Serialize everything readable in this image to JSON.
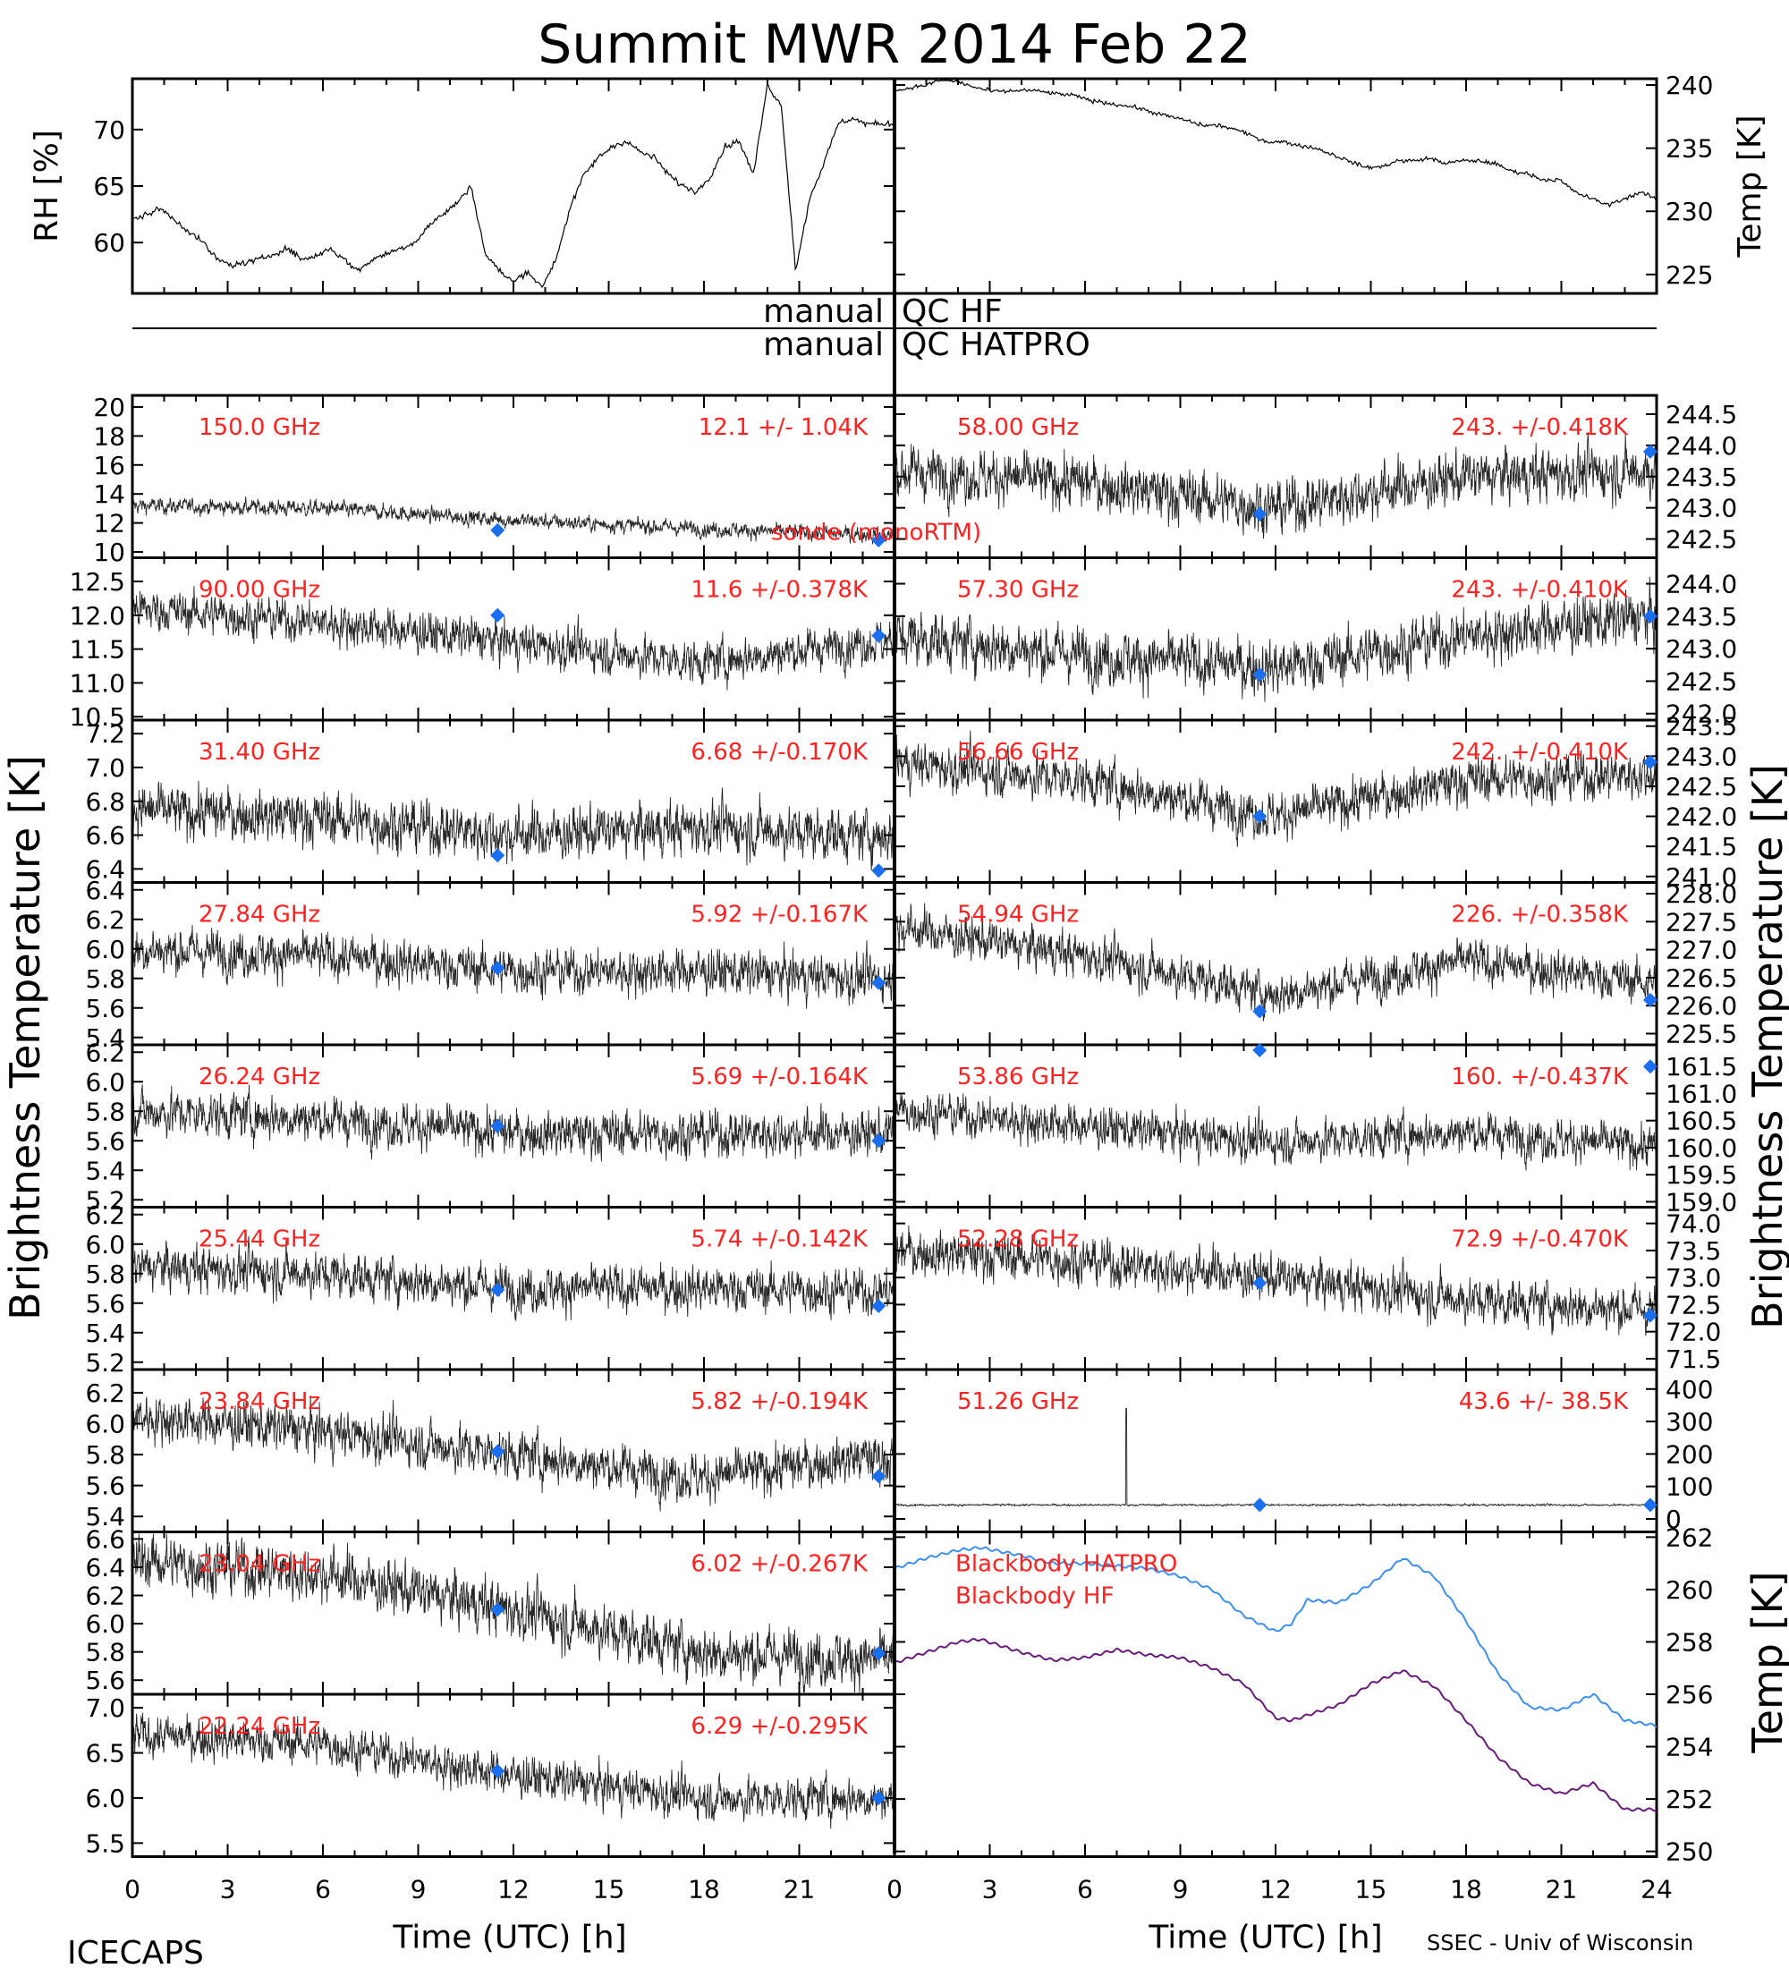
{
  "title": "Summit MWR 2014 Feb 22",
  "footer": {
    "left": "ICECAPS",
    "right": "SSEC - Univ of Wisconsin"
  },
  "colors": {
    "ink": "#000000",
    "label": "#ff2020",
    "diamond": "#1a6ff0",
    "bb_hatpro": "#3a8ff0",
    "bb_hf": "#6a1a7a"
  },
  "icons": {
    "diamond_marker": "diamond-icon"
  },
  "qc": {
    "line1_left": "manual",
    "line1_right": "QC HF",
    "line2_left": "manual",
    "line2_right": "QC HATPRO"
  },
  "met": {
    "left": {
      "ylabel": "RH [%]",
      "yticks": [
        "60",
        "65",
        "70"
      ],
      "ylim": [
        55.5,
        74.5
      ],
      "values": [
        62,
        62.5,
        63,
        62,
        61,
        60,
        58.5,
        58,
        58.2,
        58.5,
        59,
        59.5,
        58.5,
        58.8,
        59.5,
        58.5,
        57.5,
        58.5,
        59,
        59.5,
        60,
        61.5,
        62.5,
        63.5,
        65,
        59,
        57.5,
        56.5,
        57.5,
        56,
        58.5,
        63,
        66,
        67.5,
        68.5,
        69,
        68,
        67.5,
        66,
        65,
        64.5,
        66,
        68.5,
        69,
        66,
        74,
        72,
        57.5,
        64,
        67,
        70.5,
        71,
        70.5,
        70.5,
        70.5
      ]
    },
    "right": {
      "ylabel": "Temp [K]",
      "yticks": [
        "225",
        "230",
        "235",
        "240"
      ],
      "ylim": [
        223.5,
        240.5
      ],
      "values": [
        239.5,
        239.8,
        240,
        240.5,
        240.2,
        239.8,
        239.5,
        239.5,
        239.6,
        239.5,
        239.3,
        239.2,
        238.8,
        238.6,
        238.4,
        238.2,
        237.8,
        237.5,
        237.2,
        236.8,
        236.8,
        236.5,
        236,
        235.5,
        235.5,
        235.2,
        235,
        234.5,
        234,
        233.5,
        233.5,
        234,
        234,
        234.2,
        233.8,
        234,
        234,
        233.8,
        233.2,
        233,
        232.5,
        232.5,
        231.5,
        231,
        230.5,
        231,
        231.5,
        231
      ]
    }
  },
  "axes_bottom": {
    "xlabel": "Time (UTC) [h]",
    "left_xticks": [
      "0",
      "3",
      "6",
      "9",
      "12",
      "15",
      "18",
      "21"
    ],
    "right_xticks": [
      "0",
      "3",
      "6",
      "9",
      "12",
      "15",
      "18",
      "21",
      "24"
    ]
  },
  "side_labels": {
    "left": "Brightness Temperature [K]",
    "right": "Brightness Temperature [K]",
    "right_bottom": "Temp [K]"
  },
  "chart_data": {
    "type": "scatter",
    "x_unit": "hours UTC",
    "left_column": [
      {
        "freq": "150.0 GHz",
        "stat": "12.1 +/-  1.04K",
        "yticks": [
          "10",
          "12",
          "14",
          "16",
          "18",
          "20"
        ],
        "ylim": [
          9.6,
          20.8
        ],
        "trend": [
          [
            0,
            13.2
          ],
          [
            6,
            13.0
          ],
          [
            12,
            12.2
          ],
          [
            18,
            11.6
          ],
          [
            23,
            11.2
          ]
        ],
        "noise": 0.7,
        "diamonds": [
          [
            11.5,
            11.5
          ],
          [
            23.5,
            10.8
          ]
        ],
        "note": "sonde (monoRTM)"
      },
      {
        "freq": "90.00 GHz",
        "stat": "11.6 +/-0.378K",
        "yticks": [
          "10.5",
          "11.0",
          "11.5",
          "12.0",
          "12.5"
        ],
        "ylim": [
          10.45,
          12.85
        ],
        "trend": [
          [
            0,
            12.1
          ],
          [
            6,
            11.9
          ],
          [
            12,
            11.6
          ],
          [
            18,
            11.3
          ],
          [
            23,
            11.6
          ]
        ],
        "noise": 0.4,
        "diamonds": [
          [
            11.5,
            12.0
          ],
          [
            23.5,
            11.7
          ]
        ]
      },
      {
        "freq": "31.40 GHz",
        "stat": "6.68 +/-0.170K",
        "yticks": [
          "6.4",
          "6.6",
          "6.8",
          "7.0",
          "7.2"
        ],
        "ylim": [
          6.32,
          7.28
        ],
        "trend": [
          [
            0,
            6.75
          ],
          [
            6,
            6.7
          ],
          [
            12,
            6.6
          ],
          [
            18,
            6.65
          ],
          [
            23,
            6.6
          ]
        ],
        "noise": 0.2,
        "diamonds": [
          [
            11.5,
            6.48
          ],
          [
            23.5,
            6.39
          ]
        ]
      },
      {
        "freq": "27.84 GHz",
        "stat": "5.92 +/-0.167K",
        "yticks": [
          "5.4",
          "5.6",
          "5.8",
          "6.0",
          "6.2",
          "6.4"
        ],
        "ylim": [
          5.35,
          6.45
        ],
        "trend": [
          [
            0,
            6.0
          ],
          [
            6,
            5.95
          ],
          [
            12,
            5.85
          ],
          [
            18,
            5.85
          ],
          [
            23,
            5.8
          ]
        ],
        "noise": 0.2,
        "diamonds": [
          [
            11.5,
            5.87
          ],
          [
            23.5,
            5.77
          ]
        ]
      },
      {
        "freq": "26.24 GHz",
        "stat": "5.69 +/-0.164K",
        "yticks": [
          "5.2",
          "5.4",
          "5.6",
          "5.8",
          "6.0",
          "6.2"
        ],
        "ylim": [
          5.15,
          6.25
        ],
        "trend": [
          [
            0,
            5.8
          ],
          [
            6,
            5.75
          ],
          [
            12,
            5.65
          ],
          [
            18,
            5.65
          ],
          [
            23,
            5.65
          ]
        ],
        "noise": 0.2,
        "diamonds": [
          [
            11.5,
            5.7
          ],
          [
            23.5,
            5.6
          ]
        ]
      },
      {
        "freq": "25.44 GHz",
        "stat": "5.74 +/-0.142K",
        "yticks": [
          "5.2",
          "5.4",
          "5.6",
          "5.8",
          "6.0",
          "6.2"
        ],
        "ylim": [
          5.15,
          6.25
        ],
        "trend": [
          [
            0,
            5.85
          ],
          [
            6,
            5.8
          ],
          [
            12,
            5.7
          ],
          [
            18,
            5.7
          ],
          [
            23,
            5.68
          ]
        ],
        "noise": 0.2,
        "diamonds": [
          [
            11.5,
            5.69
          ],
          [
            23.5,
            5.58
          ]
        ]
      },
      {
        "freq": "23.84 GHz",
        "stat": "5.82 +/-0.194K",
        "yticks": [
          "5.4",
          "5.6",
          "5.8",
          "6.0",
          "6.2"
        ],
        "ylim": [
          5.3,
          6.35
        ],
        "trend": [
          [
            0,
            6.05
          ],
          [
            6,
            5.95
          ],
          [
            12,
            5.8
          ],
          [
            18,
            5.65
          ],
          [
            23,
            5.78
          ]
        ],
        "noise": 0.2,
        "diamonds": [
          [
            11.5,
            5.82
          ],
          [
            23.5,
            5.66
          ]
        ]
      },
      {
        "freq": "23.04 GHz",
        "stat": "6.02 +/-0.267K",
        "yticks": [
          "5.6",
          "5.8",
          "6.0",
          "6.2",
          "6.4",
          "6.6"
        ],
        "ylim": [
          5.5,
          6.65
        ],
        "trend": [
          [
            0,
            6.45
          ],
          [
            6,
            6.35
          ],
          [
            12,
            6.1
          ],
          [
            18,
            5.8
          ],
          [
            23,
            5.75
          ]
        ],
        "noise": 0.25,
        "diamonds": [
          [
            11.5,
            6.1
          ],
          [
            23.5,
            5.79
          ]
        ]
      },
      {
        "freq": "22.24 GHz",
        "stat": "6.29 +/-0.295K",
        "yticks": [
          "5.5",
          "6.0",
          "6.5",
          "7.0"
        ],
        "ylim": [
          5.35,
          7.15
        ],
        "trend": [
          [
            0,
            6.7
          ],
          [
            6,
            6.6
          ],
          [
            12,
            6.25
          ],
          [
            18,
            6.0
          ],
          [
            23,
            6.0
          ]
        ],
        "noise": 0.3,
        "diamonds": [
          [
            11.5,
            6.3
          ],
          [
            23.5,
            6.0
          ]
        ]
      }
    ],
    "right_column": [
      {
        "freq": "58.00 GHz",
        "stat": "243. +/-0.418K",
        "yticks": [
          "242.5",
          "243.0",
          "243.5",
          "244.0",
          "244.5"
        ],
        "ylim": [
          242.2,
          244.8
        ],
        "trend": [
          [
            0,
            243.6
          ],
          [
            6,
            243.4
          ],
          [
            12,
            243.0
          ],
          [
            18,
            243.5
          ],
          [
            24,
            243.6
          ]
        ],
        "noise": 0.55,
        "diamonds": [
          [
            11.5,
            242.9
          ],
          [
            23.8,
            243.9
          ]
        ]
      },
      {
        "freq": "57.30 GHz",
        "stat": "243. +/-0.410K",
        "yticks": [
          "242.0",
          "242.5",
          "243.0",
          "243.5",
          "244.0"
        ],
        "ylim": [
          241.9,
          244.4
        ],
        "trend": [
          [
            0,
            243.2
          ],
          [
            6,
            242.9
          ],
          [
            12,
            242.7
          ],
          [
            18,
            243.2
          ],
          [
            24,
            243.5
          ]
        ],
        "noise": 0.55,
        "diamonds": [
          [
            11.5,
            242.6
          ],
          [
            23.8,
            243.5
          ]
        ]
      },
      {
        "freq": "56.66 GHz",
        "stat": "242. +/-0.410K",
        "yticks": [
          "241.0",
          "241.5",
          "242.0",
          "242.5",
          "243.0",
          "243.5"
        ],
        "ylim": [
          240.9,
          243.6
        ],
        "trend": [
          [
            0,
            242.9
          ],
          [
            6,
            242.6
          ],
          [
            12,
            242.0
          ],
          [
            18,
            242.6
          ],
          [
            24,
            242.7
          ]
        ],
        "noise": 0.5,
        "diamonds": [
          [
            11.5,
            242.0
          ],
          [
            23.8,
            242.9
          ]
        ]
      },
      {
        "freq": "54.94 GHz",
        "stat": "226. +/-0.358K",
        "yticks": [
          "225.5",
          "226.0",
          "226.5",
          "227.0",
          "227.5",
          "228.0"
        ],
        "ylim": [
          225.3,
          228.2
        ],
        "trend": [
          [
            0,
            227.4
          ],
          [
            6,
            226.9
          ],
          [
            12,
            226.2
          ],
          [
            18,
            226.8
          ],
          [
            24,
            226.4
          ]
        ],
        "noise": 0.5,
        "diamonds": [
          [
            11.5,
            225.9
          ],
          [
            23.8,
            226.1
          ]
        ]
      },
      {
        "freq": "53.86 GHz",
        "stat": "160. +/-0.437K",
        "yticks": [
          "159.0",
          "159.5",
          "160.0",
          "160.5",
          "161.0",
          "161.5"
        ],
        "ylim": [
          158.9,
          161.9
        ],
        "trend": [
          [
            0,
            160.7
          ],
          [
            6,
            160.4
          ],
          [
            12,
            160.1
          ],
          [
            18,
            160.3
          ],
          [
            24,
            160.0
          ]
        ],
        "noise": 0.5,
        "diamonds": [
          [
            11.5,
            161.8
          ],
          [
            23.8,
            161.5
          ]
        ]
      },
      {
        "freq": "52.28 GHz",
        "stat": "72.9 +/-0.470K",
        "yticks": [
          "71.5",
          "72.0",
          "72.5",
          "73.0",
          "73.5",
          "74.0"
        ],
        "ylim": [
          71.3,
          74.3
        ],
        "trend": [
          [
            0,
            73.5
          ],
          [
            6,
            73.3
          ],
          [
            12,
            73.0
          ],
          [
            18,
            72.6
          ],
          [
            24,
            72.4
          ]
        ],
        "noise": 0.55,
        "diamonds": [
          [
            11.5,
            72.9
          ],
          [
            23.8,
            72.3
          ]
        ]
      },
      {
        "freq": "51.26 GHz",
        "stat": "43.6 +/- 38.5K",
        "yticks": [
          "0",
          "100",
          "200",
          "300",
          "400"
        ],
        "ylim": [
          -40,
          460
        ],
        "trend": [
          [
            0,
            43
          ],
          [
            24,
            43
          ]
        ],
        "noise": 4,
        "diamonds": [
          [
            11.5,
            43
          ],
          [
            23.8,
            43
          ]
        ],
        "spike": true
      }
    ],
    "blackbody": {
      "yticks": [
        "250",
        "252",
        "254",
        "256",
        "258",
        "260",
        "262"
      ],
      "ylim": [
        249.8,
        262.2
      ],
      "series": [
        {
          "name": "Blackbody HATPRO",
          "x": [
            0,
            1,
            2,
            2.7,
            4,
            5,
            6,
            7,
            8,
            9,
            10,
            11,
            12,
            12.5,
            13,
            14,
            15,
            16,
            17,
            18,
            19,
            20,
            21,
            22,
            23,
            24
          ],
          "values": [
            260.8,
            261.2,
            261.5,
            261.6,
            261.3,
            261.0,
            261.0,
            260.9,
            260.8,
            260.5,
            260.0,
            259.0,
            258.4,
            258.7,
            259.6,
            259.5,
            260.2,
            261.2,
            260.5,
            258.8,
            256.8,
            255.5,
            255.4,
            256,
            255.0,
            254.8
          ]
        },
        {
          "name": "Blackbody HF",
          "x": [
            0,
            1,
            2,
            2.7,
            4,
            5,
            6,
            7,
            8,
            9,
            10,
            11,
            12,
            12.5,
            13,
            14,
            15,
            16,
            17,
            18,
            19,
            20,
            21,
            22,
            23,
            24
          ],
          "values": [
            257.2,
            257.6,
            258.0,
            258.1,
            257.6,
            257.3,
            257.4,
            257.7,
            257.5,
            257.4,
            257.0,
            256.4,
            255.1,
            255.0,
            255.2,
            255.6,
            256.4,
            256.9,
            256.3,
            255.0,
            253.6,
            252.6,
            252.2,
            252.6,
            251.6,
            251.6
          ]
        }
      ]
    }
  }
}
